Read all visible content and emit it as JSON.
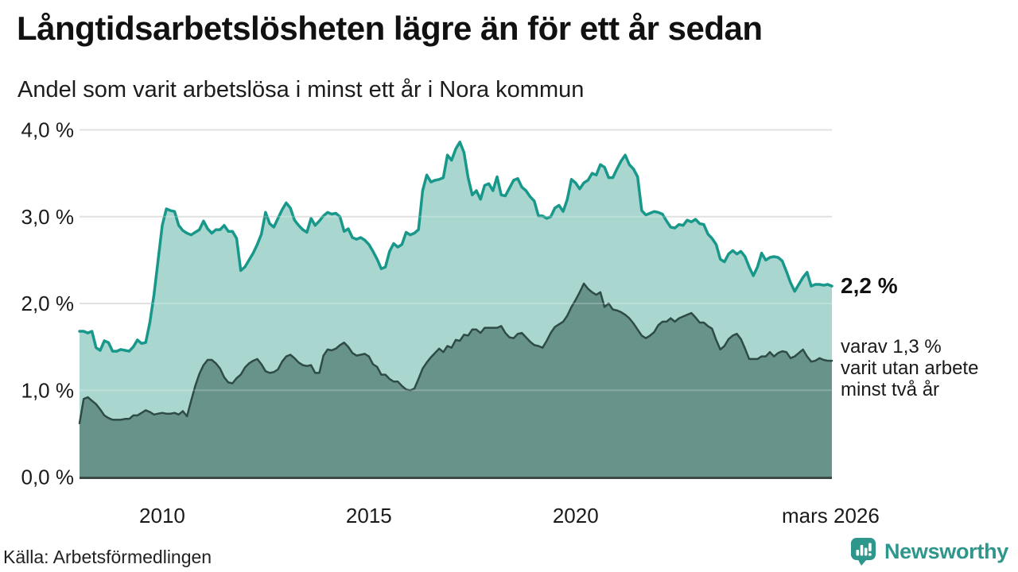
{
  "header": {
    "title": "Långtidsarbetslösheten lägre än för ett år sedan",
    "subtitle": "Andel som varit arbetslösa i minst ett år i Nora kommun"
  },
  "annotations": {
    "end_value": "2,2 %",
    "sub_lines": [
      "varav 1,3 %",
      "varit utan arbete",
      "minst två år"
    ]
  },
  "footer": {
    "source": "Källa: Arbetsförmedlingen",
    "brand": "Newsworthy"
  },
  "colors": {
    "line_one_year": "#17988a",
    "fill_one_year": "#a9d6cf",
    "line_two_years": "#2e4b46",
    "fill_two_years": "#68938b",
    "gridline": "#d9d9d9",
    "gridline_overlay": "rgba(255,255,255,0.22)",
    "baseline": "#3b4a47",
    "text": "#1a1a1a",
    "brand_teal": "#2f968b"
  },
  "chart_data": {
    "type": "area",
    "title": "Långtidsarbetslösheten lägre än för ett år sedan",
    "subtitle": "Andel som varit arbetslösa i minst ett år i Nora kommun",
    "unit": "%",
    "x_start": 2008.0,
    "x_step": 0.1,
    "ylim": [
      0,
      4
    ],
    "grid": true,
    "yticks": [
      {
        "v": 0,
        "label": "0,0 %"
      },
      {
        "v": 1,
        "label": "1,0 %"
      },
      {
        "v": 2,
        "label": "2,0 %"
      },
      {
        "v": 3,
        "label": "3,0 %"
      },
      {
        "v": 4,
        "label": "4,0 %"
      }
    ],
    "xticks": [
      {
        "t": 2010,
        "label": "2010"
      },
      {
        "t": 2015,
        "label": "2015"
      },
      {
        "t": 2020,
        "label": "2020"
      },
      {
        "t": 2026.17,
        "label": "mars 2026"
      }
    ],
    "series": [
      {
        "name": "Arbetslösa minst ett år",
        "end_label": "2,2 %",
        "line_color": "#17988a",
        "fill_color": "#a9d6cf",
        "line_width": 3.5,
        "values": [
          1.68,
          1.68,
          1.66,
          1.68,
          1.49,
          1.46,
          1.57,
          1.55,
          1.45,
          1.45,
          1.47,
          1.46,
          1.45,
          1.5,
          1.58,
          1.54,
          1.55,
          1.78,
          2.1,
          2.5,
          2.9,
          3.09,
          3.07,
          3.06,
          2.9,
          2.84,
          2.81,
          2.79,
          2.82,
          2.85,
          2.95,
          2.86,
          2.81,
          2.85,
          2.85,
          2.9,
          2.83,
          2.83,
          2.75,
          2.38,
          2.42,
          2.5,
          2.58,
          2.68,
          2.8,
          3.05,
          2.92,
          2.88,
          2.98,
          3.08,
          3.16,
          3.1,
          2.96,
          2.9,
          2.85,
          2.82,
          2.98,
          2.9,
          2.95,
          3.01,
          3.05,
          3.03,
          3.04,
          3.0,
          2.83,
          2.86,
          2.76,
          2.74,
          2.76,
          2.73,
          2.68,
          2.6,
          2.51,
          2.4,
          2.42,
          2.6,
          2.69,
          2.65,
          2.68,
          2.82,
          2.79,
          2.81,
          2.85,
          3.3,
          3.48,
          3.4,
          3.42,
          3.43,
          3.45,
          3.71,
          3.65,
          3.78,
          3.86,
          3.74,
          3.45,
          3.25,
          3.3,
          3.2,
          3.36,
          3.38,
          3.3,
          3.46,
          3.25,
          3.24,
          3.33,
          3.42,
          3.44,
          3.34,
          3.3,
          3.23,
          3.18,
          3.01,
          3.01,
          2.98,
          3.0,
          3.1,
          3.13,
          3.06,
          3.2,
          3.43,
          3.39,
          3.32,
          3.39,
          3.42,
          3.5,
          3.48,
          3.6,
          3.57,
          3.45,
          3.45,
          3.55,
          3.64,
          3.71,
          3.6,
          3.55,
          3.46,
          3.07,
          3.02,
          3.04,
          3.06,
          3.05,
          3.03,
          2.95,
          2.88,
          2.87,
          2.91,
          2.9,
          2.96,
          2.94,
          2.97,
          2.92,
          2.91,
          2.8,
          2.75,
          2.68,
          2.51,
          2.48,
          2.57,
          2.61,
          2.57,
          2.6,
          2.54,
          2.42,
          2.32,
          2.42,
          2.58,
          2.5,
          2.53,
          2.54,
          2.53,
          2.49,
          2.37,
          2.24,
          2.14,
          2.22,
          2.3,
          2.36,
          2.2,
          2.22,
          2.22,
          2.21,
          2.22,
          2.2
        ]
      },
      {
        "name": "Arbetslösa minst två år",
        "end_label": "1,3 %",
        "line_color": "#2e4b46",
        "fill_color": "#68938b",
        "line_width": 2.5,
        "values": [
          0.62,
          0.9,
          0.92,
          0.88,
          0.84,
          0.78,
          0.71,
          0.68,
          0.66,
          0.66,
          0.66,
          0.67,
          0.67,
          0.71,
          0.71,
          0.74,
          0.77,
          0.75,
          0.72,
          0.73,
          0.74,
          0.73,
          0.73,
          0.74,
          0.72,
          0.76,
          0.7,
          0.88,
          1.05,
          1.19,
          1.29,
          1.35,
          1.35,
          1.31,
          1.25,
          1.15,
          1.09,
          1.08,
          1.14,
          1.18,
          1.26,
          1.31,
          1.34,
          1.36,
          1.3,
          1.22,
          1.2,
          1.21,
          1.24,
          1.33,
          1.39,
          1.41,
          1.37,
          1.32,
          1.29,
          1.28,
          1.29,
          1.2,
          1.2,
          1.4,
          1.47,
          1.46,
          1.48,
          1.52,
          1.55,
          1.5,
          1.43,
          1.4,
          1.41,
          1.42,
          1.39,
          1.3,
          1.27,
          1.18,
          1.18,
          1.13,
          1.1,
          1.1,
          1.05,
          1.01,
          1.0,
          1.02,
          1.13,
          1.25,
          1.32,
          1.38,
          1.43,
          1.48,
          1.44,
          1.51,
          1.49,
          1.58,
          1.57,
          1.64,
          1.63,
          1.7,
          1.7,
          1.66,
          1.72,
          1.72,
          1.72,
          1.72,
          1.74,
          1.66,
          1.61,
          1.6,
          1.65,
          1.66,
          1.61,
          1.56,
          1.52,
          1.51,
          1.49,
          1.57,
          1.66,
          1.73,
          1.76,
          1.79,
          1.86,
          1.96,
          2.04,
          2.13,
          2.23,
          2.17,
          2.13,
          2.1,
          2.13,
          1.96,
          2.0,
          1.93,
          1.92,
          1.9,
          1.87,
          1.83,
          1.77,
          1.7,
          1.63,
          1.6,
          1.63,
          1.67,
          1.75,
          1.79,
          1.79,
          1.83,
          1.79,
          1.83,
          1.85,
          1.87,
          1.89,
          1.84,
          1.78,
          1.78,
          1.74,
          1.71,
          1.58,
          1.47,
          1.51,
          1.59,
          1.63,
          1.65,
          1.59,
          1.48,
          1.36,
          1.36,
          1.36,
          1.39,
          1.39,
          1.44,
          1.39,
          1.43,
          1.45,
          1.44,
          1.37,
          1.39,
          1.43,
          1.47,
          1.39,
          1.33,
          1.34,
          1.37,
          1.35,
          1.34,
          1.34
        ]
      }
    ]
  }
}
